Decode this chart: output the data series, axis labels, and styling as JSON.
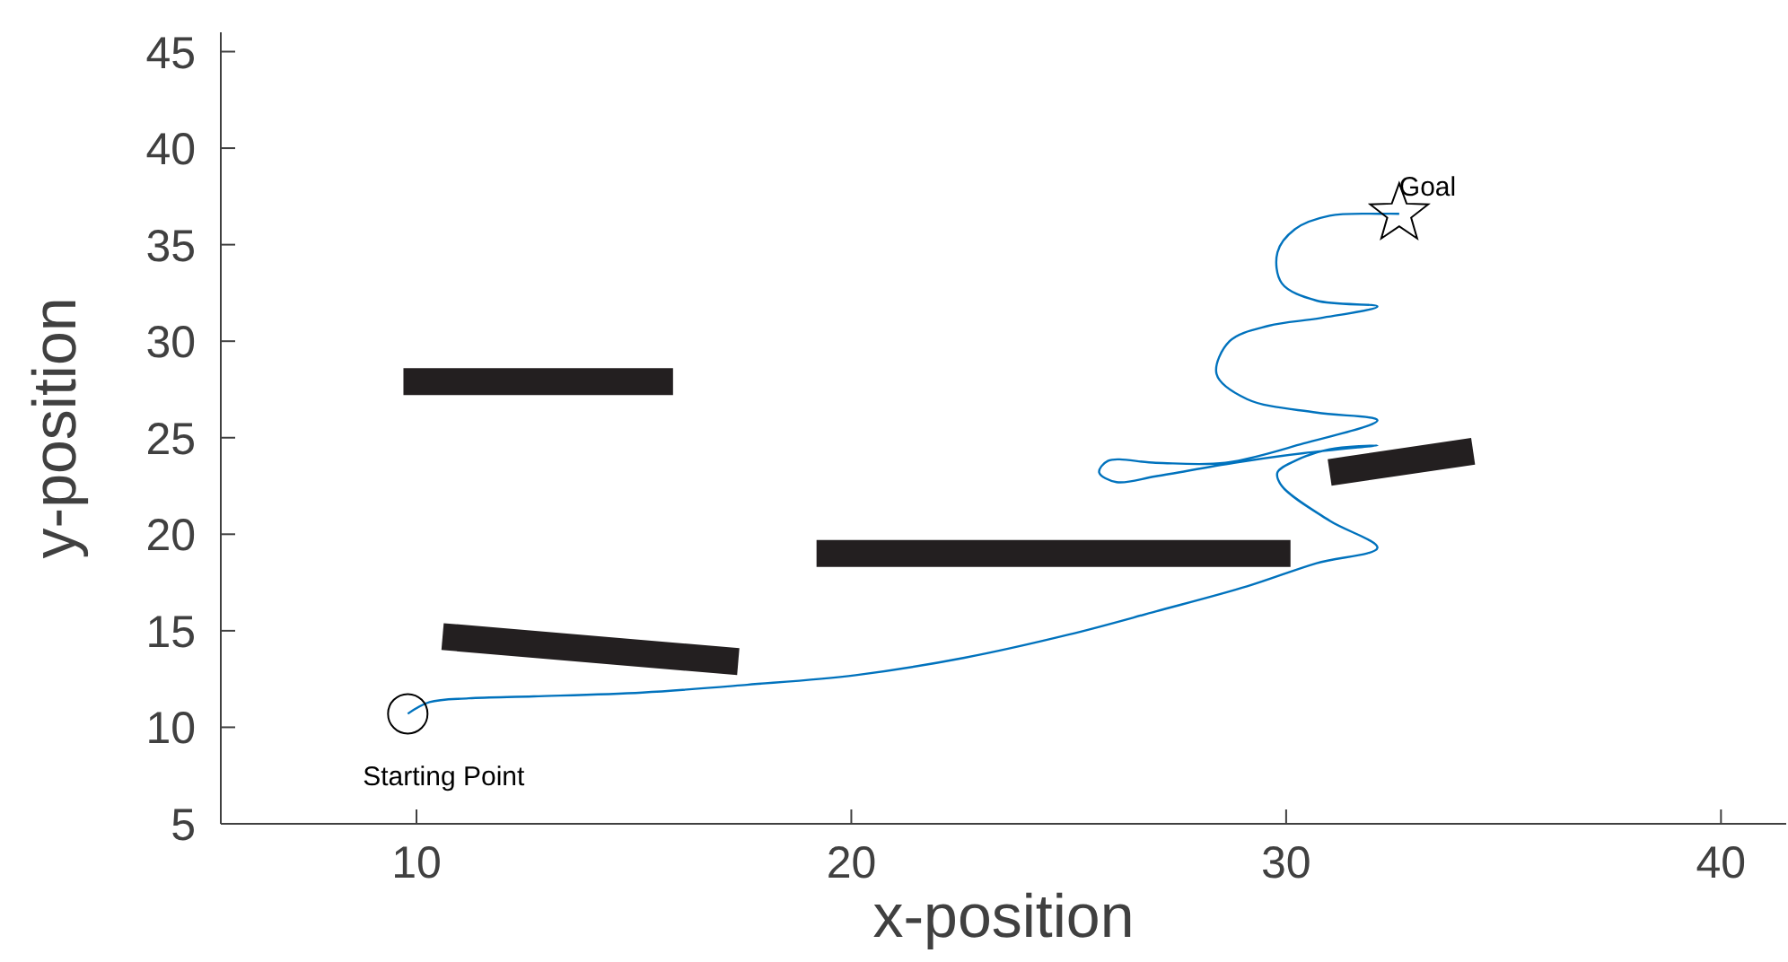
{
  "chart_data": {
    "type": "line",
    "xlabel": "x-position",
    "ylabel": "y-position",
    "xlim": [
      5.5,
      41.5
    ],
    "ylim": [
      5,
      46
    ],
    "xticks": [
      10,
      20,
      30,
      40
    ],
    "yticks": [
      5,
      10,
      15,
      20,
      25,
      30,
      35,
      40,
      45
    ],
    "grid": false,
    "series": [
      {
        "color": "#0072bd",
        "x": [
          9.8,
          10.3,
          11.2,
          12.7,
          15.2,
          17.6,
          20.1,
          22.6,
          25.0,
          27.0,
          29.1,
          30.7,
          32.1,
          31.0,
          29.9,
          29.8,
          30.2,
          31.0,
          32.1,
          30.4,
          28.8,
          27.0,
          26.1,
          25.7,
          25.9,
          27.0,
          28.6,
          30.4,
          32.1,
          30.7,
          29.1,
          28.4,
          28.7,
          29.6,
          30.8,
          32.1,
          30.7,
          29.9,
          29.8,
          30.2,
          31.0,
          32.2,
          32.6
        ],
        "values": [
          10.7,
          11.3,
          11.5,
          11.6,
          11.8,
          12.2,
          12.7,
          13.6,
          14.8,
          16.0,
          17.3,
          18.5,
          19.3,
          20.7,
          22.5,
          23.2,
          23.8,
          24.4,
          24.6,
          24.2,
          23.7,
          23.0,
          22.7,
          23.2,
          23.8,
          23.7,
          23.7,
          24.7,
          25.9,
          26.3,
          27.0,
          28.3,
          30.0,
          30.8,
          31.2,
          31.8,
          32.1,
          33.0,
          34.6,
          35.8,
          36.5,
          36.6,
          36.6
        ]
      },
      {
        "color": "#231f20",
        "x": [
          9.7,
          15.9
        ],
        "values": [
          27.9,
          27.9
        ]
      },
      {
        "color": "#231f20",
        "x": [
          10.6,
          17.4
        ],
        "values": [
          14.7,
          13.4
        ]
      },
      {
        "color": "#231f20",
        "x": [
          19.2,
          30.1
        ],
        "values": [
          19.0,
          19.0
        ]
      },
      {
        "color": "#231f20",
        "x": [
          31.0,
          34.3
        ],
        "values": [
          23.2,
          24.3
        ]
      },
      {
        "type": "scatter",
        "color": "#000000",
        "marker": "circle",
        "x": [
          9.8
        ],
        "values": [
          10.7
        ]
      },
      {
        "type": "scatter",
        "color": "#000000",
        "marker": "star",
        "x": [
          32.6
        ],
        "values": [
          36.6
        ]
      }
    ],
    "annotations": [
      {
        "text": "Starting Point",
        "x": 9.8,
        "y": 10.7
      },
      {
        "text": "Goal",
        "x": 32.6,
        "y": 36.6
      }
    ]
  }
}
